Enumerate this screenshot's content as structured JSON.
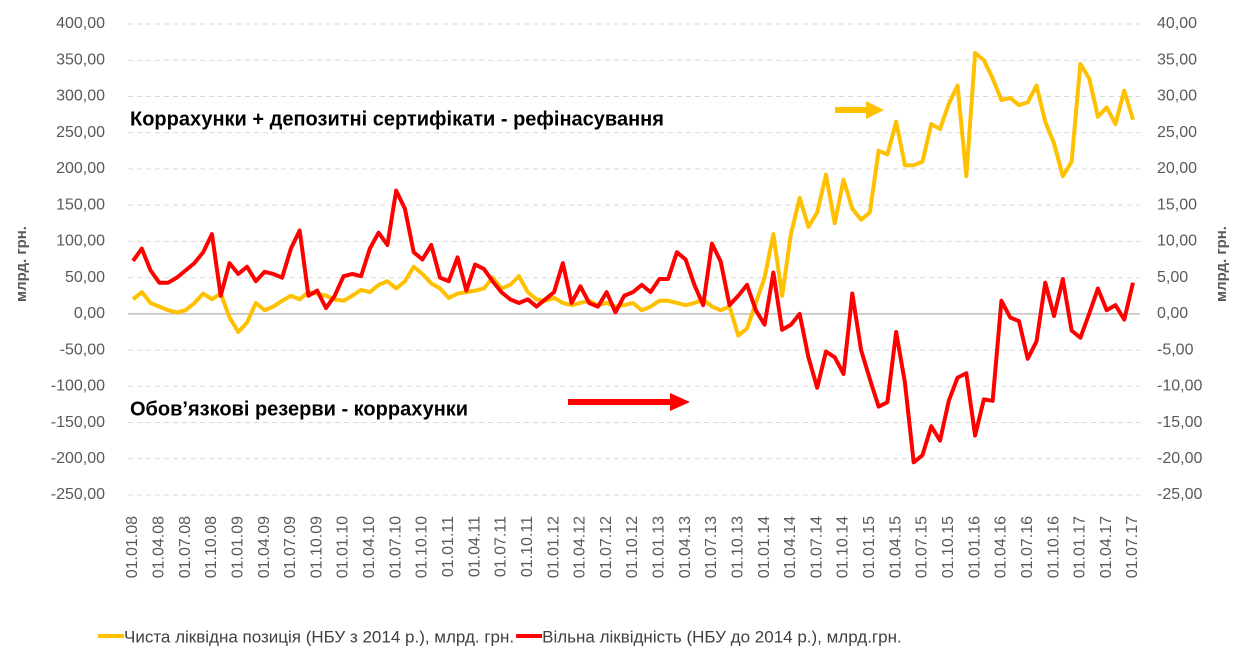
{
  "chart_data": {
    "type": "line",
    "y_label": "млрд. грн.",
    "y2_label": "млрд. грн.",
    "annotations": [
      "Коррахунки  + депозитні сертифікати - рефінасування",
      "Обов’язкові  резерви - коррахунки"
    ],
    "categories": [
      "01.01.08",
      null,
      null,
      "01.04.08",
      null,
      null,
      "01.07.08",
      null,
      null,
      "01.10.08",
      null,
      null,
      "01.01.09",
      null,
      null,
      "01.04.09",
      null,
      null,
      "01.07.09",
      null,
      null,
      "01.10.09",
      null,
      null,
      "01.01.10",
      null,
      null,
      "01.04.10",
      null,
      null,
      "01.07.10",
      null,
      null,
      "01.10.10",
      null,
      null,
      "01.01.11",
      null,
      null,
      "01.04.11",
      null,
      null,
      "01.07.11",
      null,
      null,
      "01.10.11",
      null,
      null,
      "01.01.12",
      null,
      null,
      "01.04.12",
      null,
      null,
      "01.07.12",
      null,
      null,
      "01.10.12",
      null,
      null,
      "01.01.13",
      null,
      null,
      "01.04.13",
      null,
      null,
      "01.07.13",
      null,
      null,
      "01.10.13",
      null,
      null,
      "01.01.14",
      null,
      null,
      "01.04.14",
      null,
      null,
      "01.07.14",
      null,
      null,
      "01.10.14",
      null,
      null,
      "01.01.15",
      null,
      null,
      "01.04.15",
      null,
      null,
      "01.07.15",
      null,
      null,
      "01.10.15",
      null,
      null,
      "01.01.16",
      null,
      null,
      "01.04.16",
      null,
      null,
      "01.07.16",
      null,
      null,
      "01.10.16",
      null,
      null,
      "01.01.17",
      null,
      null,
      "01.04.17",
      null,
      null,
      "01.07.17"
    ],
    "series": [
      {
        "name": "Чиста ліквідна позиція (НБУ з 2014 р.), млрд. грн.",
        "color": "#ffc000",
        "values": [
          20,
          30,
          15,
          10,
          5,
          2,
          5,
          15,
          28,
          20,
          28,
          -5,
          -25,
          -12,
          15,
          5,
          10,
          18,
          25,
          20,
          30,
          28,
          25,
          20,
          18,
          25,
          33,
          30,
          40,
          45,
          35,
          45,
          65,
          55,
          42,
          35,
          22,
          28,
          30,
          32,
          35,
          50,
          35,
          40,
          52,
          30,
          20,
          18,
          22,
          15,
          12,
          15,
          18,
          12,
          15,
          10,
          12,
          15,
          5,
          10,
          18,
          18,
          15,
          12,
          15,
          20,
          10,
          5,
          10,
          -30,
          -20,
          15,
          50,
          110,
          25,
          110,
          160,
          120,
          140,
          192,
          125,
          185,
          145,
          130,
          140,
          225,
          220,
          265,
          205,
          205,
          210,
          262,
          255,
          290,
          315,
          190,
          360,
          350,
          325,
          295,
          298,
          288,
          292,
          315,
          265,
          235,
          190,
          210,
          345,
          325,
          272,
          285,
          262,
          308,
          268
        ]
      },
      {
        "name": "Вільна ліквідність (НБУ до 2014 р.), млрд.грн.",
        "color": "#ff0000",
        "axis": "y2",
        "values": [
          7.3,
          9,
          6,
          4.3,
          4.3,
          5,
          6,
          7,
          8.5,
          11,
          2.5,
          7,
          5.5,
          6.5,
          4.5,
          5.8,
          5.5,
          5,
          9,
          11.5,
          2.5,
          3.2,
          0.8,
          2.5,
          5.2,
          5.5,
          5.2,
          9,
          11.2,
          9.5,
          17,
          14.5,
          8.5,
          7.5,
          9.5,
          5,
          4.5,
          7.8,
          3.2,
          6.8,
          6.2,
          4.5,
          3,
          2,
          1.5,
          2,
          1,
          2,
          3,
          7,
          1.5,
          3.8,
          1.5,
          1,
          3,
          0.2,
          2.5,
          3,
          4,
          3,
          4.8,
          4.8,
          8.5,
          7.5,
          4,
          1.2,
          9.7,
          7.2,
          1.2,
          2.5,
          4,
          0.5,
          -1.5,
          5.7,
          -2.2,
          -1.5,
          0,
          -6,
          -10.2,
          -5.2,
          -6,
          -8.3,
          2.8,
          -5,
          -9,
          -12.8,
          -12.2,
          -2.5,
          -9.5,
          -20.5,
          -19.5,
          -15.5,
          -17.5,
          -12,
          -8.8,
          -8.2,
          -16.8,
          -11.8,
          -12,
          1.8,
          -0.5,
          -1,
          -6.2,
          -3.8,
          4.3,
          -0.3,
          4.8,
          -2.3,
          -3.3,
          0,
          3.5,
          0.5,
          1.2,
          -0.8,
          4.3
        ]
      }
    ],
    "ylim": [
      -250,
      400
    ],
    "yticks": [
      {
        "value": -250,
        "label": "-250,00"
      },
      {
        "value": -200,
        "label": "-200,00"
      },
      {
        "value": -150,
        "label": "-150,00"
      },
      {
        "value": -100,
        "label": "-100,00"
      },
      {
        "value": -50,
        "label": "-50,00"
      },
      {
        "value": 0,
        "label": "0,00"
      },
      {
        "value": 50,
        "label": "50,00"
      },
      {
        "value": 100,
        "label": "100,00"
      },
      {
        "value": 150,
        "label": "150,00"
      },
      {
        "value": 200,
        "label": "200,00"
      },
      {
        "value": 250,
        "label": "250,00"
      },
      {
        "value": 300,
        "label": "300,00"
      },
      {
        "value": 350,
        "label": "350,00"
      },
      {
        "value": 400,
        "label": "400,00"
      }
    ],
    "y2lim": [
      -25,
      40
    ],
    "y2ticks": [
      {
        "value": -25,
        "label": "-25,00"
      },
      {
        "value": -20,
        "label": "-20,00"
      },
      {
        "value": -15,
        "label": "-15,00"
      },
      {
        "value": -10,
        "label": "-10,00"
      },
      {
        "value": -5,
        "label": "-5,00"
      },
      {
        "value": 0,
        "label": "0,00"
      },
      {
        "value": 5,
        "label": "5,00"
      },
      {
        "value": 10,
        "label": "10,00"
      },
      {
        "value": 15,
        "label": "15,00"
      },
      {
        "value": 20,
        "label": "20,00"
      },
      {
        "value": 25,
        "label": "25,00"
      },
      {
        "value": 30,
        "label": "30,00"
      },
      {
        "value": 35,
        "label": "35,00"
      },
      {
        "value": 40,
        "label": "40,00"
      }
    ],
    "grid": true,
    "legend": "bottom"
  }
}
